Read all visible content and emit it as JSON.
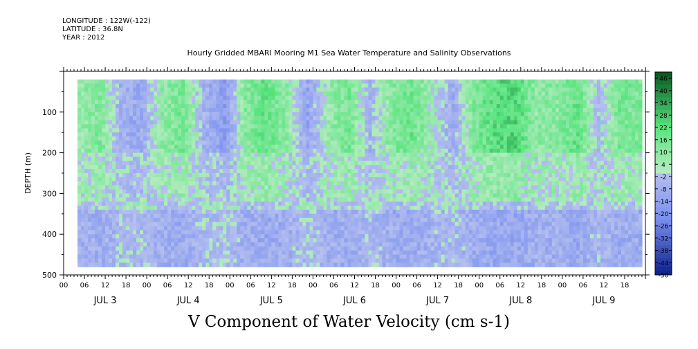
{
  "header": {
    "longitude": "LONGITUDE : 122W(-122)",
    "latitude": "LATITUDE : 36.8N",
    "year": "YEAR : 2012"
  },
  "chart_data": {
    "type": "heatmap",
    "title": "Hourly Gridded MBARI Mooring M1 Sea Water Temperature and Salinity Observations",
    "xlabel": "V Component of Water Velocity (cm s-1)",
    "ylabel": "DEPTH (m)",
    "y_range": [
      0,
      500
    ],
    "y_ticks": [
      100,
      200,
      300,
      400,
      500
    ],
    "y_ticks_labeled": [
      "100",
      "200",
      "300",
      "400",
      "500"
    ],
    "x_hour_ticks": [
      "00",
      "06",
      "12",
      "18",
      "00",
      "06",
      "12",
      "18",
      "00",
      "06",
      "12",
      "18",
      "00",
      "06",
      "12",
      "18",
      "00",
      "06",
      "12",
      "18",
      "00",
      "06",
      "12",
      "18",
      "00",
      "06",
      "12",
      "18"
    ],
    "x_day_labels": [
      "JUL  3",
      "JUL  4",
      "JUL  5",
      "JUL  6",
      "JUL  7",
      "JUL  8",
      "JUL  9"
    ],
    "data_extent": {
      "start_hour": 4,
      "end_hour": 167,
      "depth_top": 20,
      "depth_bottom": 480
    },
    "colorbar": {
      "labels": [
        "46",
        "40",
        "34",
        "28",
        "22",
        "16",
        "10",
        "4",
        "-2",
        "-8",
        "-14",
        "-20",
        "-26",
        "-32",
        "-38",
        "-44",
        "-50"
      ],
      "min": -50,
      "max": 46
    },
    "colors": {
      "pos_low": "#b4ebc0",
      "pos_mid": "#58e47e",
      "pos_high": "#0a5a24",
      "neg_low": "#b7c2ee",
      "neg_mid": "#7a8ff0",
      "neg_high": "#0a1a8a"
    },
    "day_pattern": [
      [
        0,
        -4
      ],
      [
        4,
        6
      ],
      [
        10,
        12
      ],
      [
        16,
        -8
      ],
      [
        22,
        -10
      ],
      [
        28,
        8
      ],
      [
        34,
        14
      ],
      [
        40,
        -6
      ],
      [
        46,
        -16
      ],
      [
        52,
        10
      ],
      [
        58,
        18
      ],
      [
        64,
        8
      ],
      [
        70,
        -12
      ],
      [
        76,
        6
      ],
      [
        82,
        14
      ],
      [
        88,
        -6
      ],
      [
        94,
        10
      ],
      [
        100,
        16
      ],
      [
        106,
        4
      ],
      [
        112,
        -10
      ],
      [
        118,
        12
      ],
      [
        124,
        20
      ],
      [
        130,
        22
      ],
      [
        136,
        8
      ],
      [
        142,
        10
      ],
      [
        148,
        18
      ],
      [
        154,
        -4
      ],
      [
        160,
        14
      ],
      [
        167,
        12
      ]
    ]
  }
}
